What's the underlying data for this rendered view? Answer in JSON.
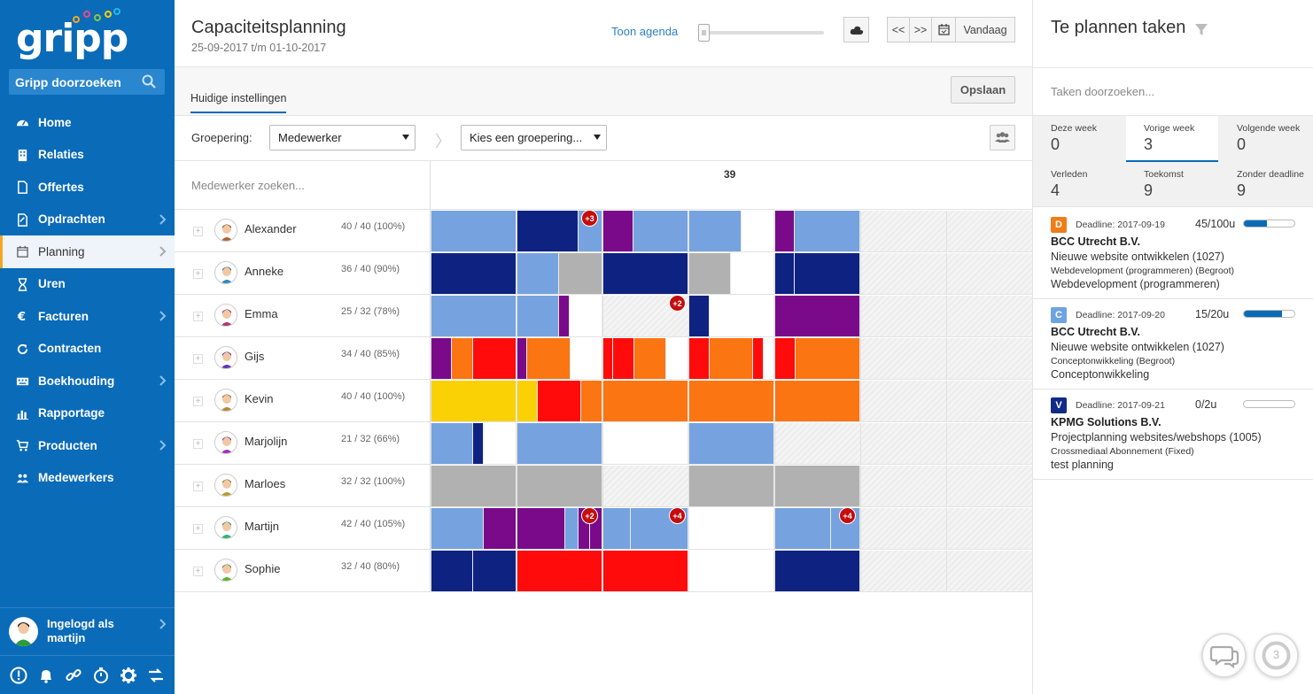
{
  "sidebar": {
    "logo_text": "gripp",
    "search_label": "Gripp doorzoeken",
    "items": [
      {
        "label": "Home",
        "icon": "dashboard-icon",
        "chevron": false
      },
      {
        "label": "Relaties",
        "icon": "building-icon",
        "chevron": false
      },
      {
        "label": "Offertes",
        "icon": "document-icon",
        "chevron": false
      },
      {
        "label": "Opdrachten",
        "icon": "edit-document-icon",
        "chevron": true
      },
      {
        "label": "Planning",
        "icon": "calendar-icon",
        "chevron": true,
        "active": true
      },
      {
        "label": "Uren",
        "icon": "hourglass-icon",
        "chevron": false
      },
      {
        "label": "Facturen",
        "icon": "euro-icon",
        "chevron": true
      },
      {
        "label": "Contracten",
        "icon": "refresh-icon",
        "chevron": false
      },
      {
        "label": "Boekhouding",
        "icon": "keyboard-icon",
        "chevron": true
      },
      {
        "label": "Rapportage",
        "icon": "bar-chart-icon",
        "chevron": false
      },
      {
        "label": "Producten",
        "icon": "cart-icon",
        "chevron": true
      },
      {
        "label": "Medewerkers",
        "icon": "users-icon",
        "chevron": false
      }
    ],
    "user_line1": "Ingelogd als",
    "user_line2": "martijn",
    "tools": [
      "alert-icon",
      "bell-icon",
      "link-icon",
      "stopwatch-icon",
      "gear-icon",
      "swap-icon"
    ]
  },
  "header": {
    "title": "Capaciteitsplanning",
    "date_range": "25-09-2017 t/m 01-10-2017",
    "agenda_label": "Toon agenda",
    "prev_label": "<<",
    "next_label": ">>",
    "today_label": "Vandaag"
  },
  "tabs": {
    "current": "Huidige instellingen",
    "save_label": "Opslaan"
  },
  "grouping": {
    "label": "Groepering:",
    "selected": "Medewerker",
    "second_placeholder": "Kies een groepering..."
  },
  "grid": {
    "search_placeholder": "Medewerker zoeken...",
    "week": "39",
    "colors": {
      "light_blue": "#76a3df",
      "dark_blue": "#0e2282",
      "purple": "#7a0a8a",
      "grey": "#b1b1b1",
      "red": "#ff0b0b",
      "orange": "#fb7512",
      "yellow": "#f9d105",
      "white": "#ffffff"
    },
    "employees": [
      {
        "name": "Alexander",
        "hours": "40 / 40 (100%)",
        "badges": [
          "+3"
        ]
      },
      {
        "name": "Anneke",
        "hours": "36 / 40 (90%)",
        "badges": []
      },
      {
        "name": "Emma",
        "hours": "25 / 32 (78%)",
        "badges": [
          "+2"
        ]
      },
      {
        "name": "Gijs",
        "hours": "34 / 40 (85%)",
        "badges": []
      },
      {
        "name": "Kevin",
        "hours": "40 / 40 (100%)",
        "badges": []
      },
      {
        "name": "Marjolijn",
        "hours": "21 / 32 (66%)",
        "badges": []
      },
      {
        "name": "Marloes",
        "hours": "32 / 32 (100%)",
        "badges": []
      },
      {
        "name": "Martijn",
        "hours": "42 / 40 (105%)",
        "badges": [
          "+2",
          "+4",
          "+4"
        ]
      },
      {
        "name": "Sophie",
        "hours": "32 / 40 (80%)",
        "badges": []
      }
    ]
  },
  "right_panel": {
    "title": "Te plannen taken",
    "search_placeholder": "Taken doorzoeken...",
    "stats": [
      {
        "label": "Deze week",
        "value": "0"
      },
      {
        "label": "Vorige week",
        "value": "3",
        "active": true
      },
      {
        "label": "Volgende week",
        "value": "0"
      },
      {
        "label": "Verleden",
        "value": "4"
      },
      {
        "label": "Toekomst",
        "value": "9"
      },
      {
        "label": "Zonder deadline",
        "value": "9"
      }
    ],
    "tasks": [
      {
        "letter": "D",
        "color": "#f07d17",
        "deadline": "Deadline: 2017-09-19",
        "hours": "45/100u",
        "progress": 0.45,
        "client": "BCC Utrecht B.V.",
        "project": "Nieuwe website ontwikkelen (1027)",
        "phase": "Webdevelopment (programmeren) (Begroot)",
        "desc": "Webdevelopment (programmeren)"
      },
      {
        "letter": "C",
        "color": "#6fa3e0",
        "deadline": "Deadline: 2017-09-20",
        "hours": "15/20u",
        "progress": 0.75,
        "client": "BCC Utrecht B.V.",
        "project": "Nieuwe website ontwikkelen (1027)",
        "phase": "Conceptonwikkeling (Begroot)",
        "desc": "Conceptonwikkeling"
      },
      {
        "letter": "V",
        "color": "#132a86",
        "deadline": "Deadline: 2017-09-21",
        "hours": "0/2u",
        "progress": 0,
        "client": "KPMG Solutions B.V.",
        "project": "Projectplanning websites/webshops (1005)",
        "phase": "Crossmediaal Abonnement (Fixed)",
        "desc": "test planning"
      }
    ],
    "chat_icon": "chat-icon",
    "notification_count": "3"
  }
}
